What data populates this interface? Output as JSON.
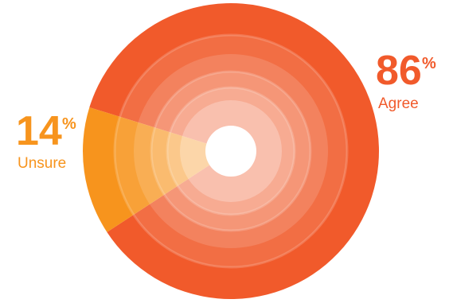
{
  "chart_data": {
    "type": "pie",
    "categories": [
      "Agree",
      "Unsure"
    ],
    "values": [
      86,
      14
    ],
    "labels": [
      {
        "name": "Agree",
        "number": "86",
        "symbol": "%",
        "color": "#f15a2b"
      },
      {
        "name": "Unsure",
        "number": "14",
        "symbol": "%",
        "color": "#f7941d"
      }
    ],
    "colors": {
      "agree": "#f15a2b",
      "unsure": "#f7941d",
      "background": "#ffffff"
    }
  }
}
